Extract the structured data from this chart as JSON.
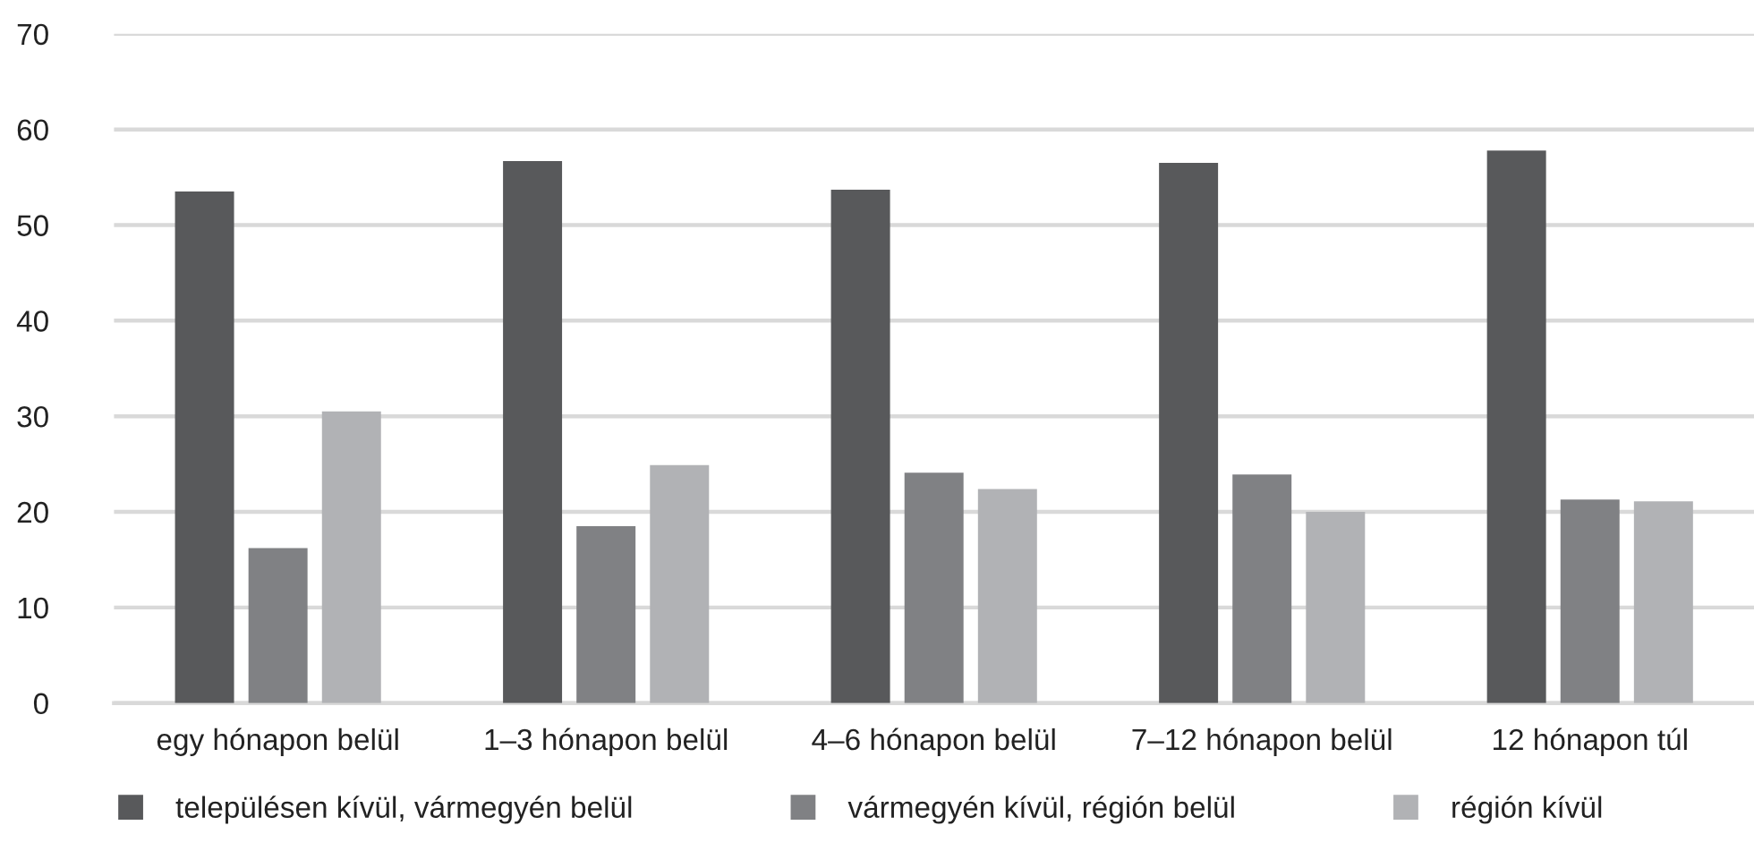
{
  "chart_data": {
    "type": "bar",
    "categories": [
      "egy hónapon belül",
      "1–3 hónapon belül",
      "4–6 hónapon belül",
      "7–12 hónapon belül",
      "12 hónapon túl"
    ],
    "series": [
      {
        "name": "településen kívül, vármegyén belül",
        "color": "#58595b",
        "values": [
          53.5,
          56.7,
          53.7,
          56.5,
          57.8
        ]
      },
      {
        "name": "vármegyén kívül, régión belül",
        "color": "#808184",
        "values": [
          16.2,
          18.5,
          24.1,
          23.9,
          21.3
        ]
      },
      {
        "name": "régión kívül",
        "color": "#b1b2b5",
        "values": [
          30.5,
          24.9,
          22.4,
          20.0,
          21.1
        ]
      }
    ],
    "ylim": [
      0,
      70
    ],
    "yticks": [
      0,
      10,
      20,
      30,
      40,
      50,
      60,
      70
    ],
    "grid": "y",
    "legend": "bottom",
    "marker": "square"
  }
}
